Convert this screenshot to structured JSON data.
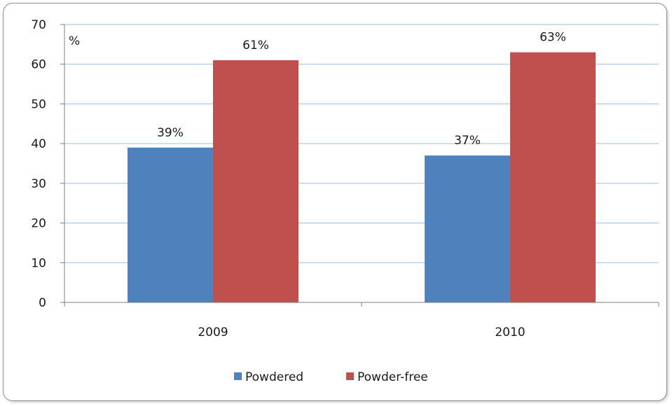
{
  "chart_data": {
    "type": "bar",
    "categories": [
      "2009",
      "2010"
    ],
    "series": [
      {
        "name": "Powdered",
        "values": [
          39,
          37
        ],
        "labels": [
          "39%",
          "37%"
        ],
        "color": "#4f81bd"
      },
      {
        "name": "Powder-free",
        "values": [
          61,
          63
        ],
        "labels": [
          "61%",
          "63%"
        ],
        "color": "#c0504d"
      }
    ],
    "unit_label": "%",
    "ylim": [
      0,
      70
    ],
    "yticks": [
      "0",
      "10",
      "20",
      "30",
      "40",
      "50",
      "60",
      "70"
    ],
    "grid": true,
    "legend_position": "bottom"
  }
}
